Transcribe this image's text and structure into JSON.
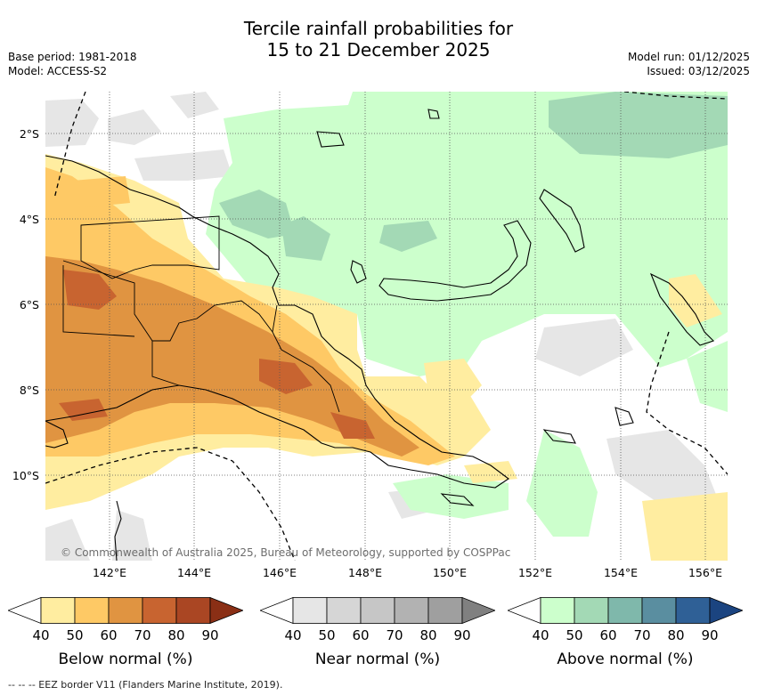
{
  "title_line1": "Tercile rainfall probabilities for",
  "title_line2": "15 to 21 December 2025",
  "base_period": "Base period: 1981-2018",
  "model": "Model: ACCESS-S2",
  "model_run": "Model run: 01/12/2025",
  "issued": "Issued: 03/12/2025",
  "copyright": "© Commonwealth of Australia 2025, Bureau of Meteorology, supported by COSPPac",
  "footnote": "--  --  -- EEZ border V11 (Flanders Marine Institute, 2019).",
  "lat_labels": [
    "2°S",
    "4°S",
    "6°S",
    "8°S",
    "10°S"
  ],
  "lon_labels": [
    "142°E",
    "144°E",
    "146°E",
    "148°E",
    "150°E",
    "152°E",
    "154°E",
    "156°E"
  ],
  "colorbars": [
    {
      "title": "Below normal (%)",
      "ticks": [
        "40",
        "50",
        "60",
        "70",
        "80",
        "90"
      ],
      "colors": [
        "#ffffff",
        "#ffeda0",
        "#fec965",
        "#e09441",
        "#c86430",
        "#aa4623",
        "#8a2f15"
      ]
    },
    {
      "title": "Near normal (%)",
      "ticks": [
        "40",
        "50",
        "60",
        "70",
        "80",
        "90"
      ],
      "colors": [
        "#ffffff",
        "#e6e6e6",
        "#d6d6d6",
        "#c6c6c6",
        "#b2b2b2",
        "#9f9f9f",
        "#808080"
      ]
    },
    {
      "title": "Above normal (%)",
      "ticks": [
        "40",
        "50",
        "60",
        "70",
        "80",
        "90"
      ],
      "colors": [
        "#ffffff",
        "#ccffcc",
        "#a3d9b5",
        "#7fb8ab",
        "#5a8ea0",
        "#2f6096",
        "#1b4480"
      ]
    }
  ]
}
